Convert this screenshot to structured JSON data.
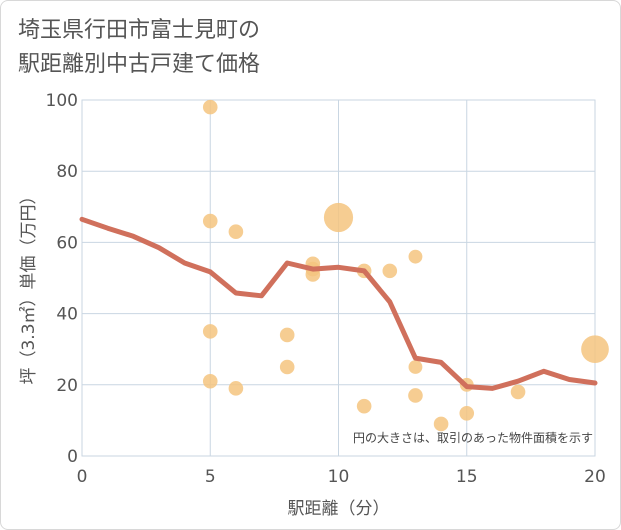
{
  "chart_data": {
    "type": "scatter",
    "title_lines": [
      "埼玉県行田市富士見町の",
      "駅距離別中古戸建て価格"
    ],
    "xlabel": "駅距離（分）",
    "ylabel": "坪（3.3㎡）単価（万円）",
    "xlim": [
      0,
      20
    ],
    "ylim": [
      0,
      100
    ],
    "x_ticks": [
      0,
      5,
      10,
      15,
      20
    ],
    "y_ticks": [
      0,
      20,
      40,
      60,
      80,
      100
    ],
    "grid": true,
    "note": "円の大きさは、取引のあった物件面積を示す",
    "colors": {
      "bubble": "#f5c47f",
      "line": "#d0705c",
      "grid": "#c9d6e2"
    },
    "bubbles": [
      {
        "x": 5,
        "y": 98,
        "size": 1
      },
      {
        "x": 5,
        "y": 66,
        "size": 1
      },
      {
        "x": 5,
        "y": 35,
        "size": 1
      },
      {
        "x": 5,
        "y": 21,
        "size": 1
      },
      {
        "x": 6,
        "y": 63,
        "size": 1
      },
      {
        "x": 6,
        "y": 19,
        "size": 1
      },
      {
        "x": 8,
        "y": 34,
        "size": 1
      },
      {
        "x": 8,
        "y": 25,
        "size": 1
      },
      {
        "x": 9,
        "y": 54,
        "size": 1
      },
      {
        "x": 9,
        "y": 52.5,
        "size": 1
      },
      {
        "x": 9,
        "y": 51,
        "size": 1
      },
      {
        "x": 10,
        "y": 67,
        "size": 4
      },
      {
        "x": 11,
        "y": 52,
        "size": 1
      },
      {
        "x": 11,
        "y": 14,
        "size": 1
      },
      {
        "x": 12,
        "y": 52,
        "size": 1
      },
      {
        "x": 13,
        "y": 56,
        "size": 0.9
      },
      {
        "x": 13,
        "y": 25,
        "size": 0.9
      },
      {
        "x": 13,
        "y": 17,
        "size": 1
      },
      {
        "x": 14,
        "y": 9,
        "size": 1
      },
      {
        "x": 15,
        "y": 20,
        "size": 0.9
      },
      {
        "x": 15,
        "y": 12,
        "size": 1
      },
      {
        "x": 17,
        "y": 18,
        "size": 1
      },
      {
        "x": 20,
        "y": 30,
        "size": 3.6
      }
    ],
    "trend_line": {
      "x": [
        0,
        1,
        2,
        3,
        4,
        5,
        6,
        7,
        8,
        9,
        10,
        11,
        12,
        13,
        14,
        15,
        16,
        17,
        18,
        19,
        20
      ],
      "y": [
        66.5,
        64,
        61.7,
        58.5,
        54.2,
        51.7,
        45.8,
        45,
        54.2,
        52.5,
        53,
        52,
        43.3,
        27.5,
        26.3,
        19.5,
        19,
        21,
        23.8,
        21.5,
        20.5
      ]
    }
  }
}
